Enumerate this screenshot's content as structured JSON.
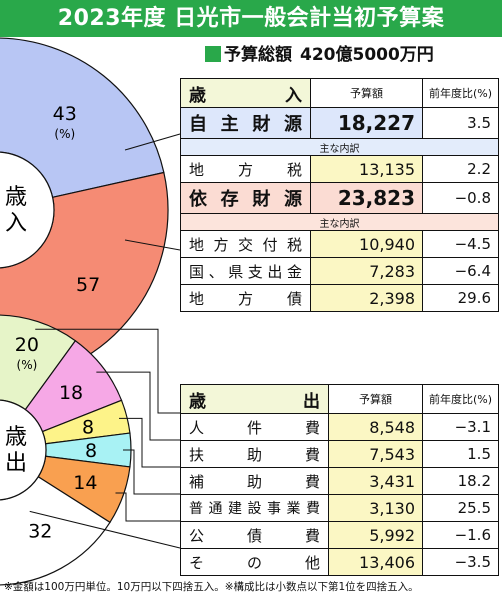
{
  "title": "2023年度 日光市一般会計当初予算案",
  "total": {
    "label": "予算総額",
    "amount": "420億5000万円"
  },
  "chart_data": [
    {
      "type": "pie",
      "title": "歳入",
      "categories": [
        "自主財源",
        "依存財源"
      ],
      "values": [
        43,
        57
      ],
      "labels": [
        "43",
        "57"
      ],
      "unit_label": "(%)",
      "colors": [
        "#b8c6f4",
        "#f58b74"
      ]
    },
    {
      "type": "pie",
      "title": "歳出",
      "categories": [
        "人件費",
        "扶助費",
        "補助費",
        "普通建設事業費",
        "公債費",
        "その他"
      ],
      "values": [
        20,
        18,
        8,
        8,
        14,
        32
      ],
      "labels": [
        "20",
        "18",
        "8",
        "8",
        "14",
        "32"
      ],
      "unit_label": "(%)",
      "colors": [
        "#e6f4c8",
        "#f6a8e6",
        "#fdf389",
        "#a8f2f4",
        "#f9a050",
        "#ffffff"
      ]
    },
    {
      "type": "table",
      "title": "歳入",
      "columns": [
        "歳　　入",
        "予算額",
        "前年度比(%)"
      ],
      "rows": [
        {
          "label": "自主財源",
          "amount": "18,227",
          "change": "3.5",
          "level": "major"
        },
        {
          "label": "主な内訳",
          "level": "note"
        },
        {
          "label": "地方税",
          "amount": "13,135",
          "change": "2.2",
          "level": "item"
        },
        {
          "label": "依存財源",
          "amount": "23,823",
          "change": "−0.8",
          "level": "major"
        },
        {
          "label": "主な内訳",
          "level": "note"
        },
        {
          "label": "地方交付税",
          "amount": "10,940",
          "change": "−4.5",
          "level": "item"
        },
        {
          "label": "国、県支出金",
          "amount": "7,283",
          "change": "−6.4",
          "level": "item"
        },
        {
          "label": "地方債",
          "amount": "2,398",
          "change": "29.6",
          "level": "item"
        }
      ]
    },
    {
      "type": "table",
      "title": "歳出",
      "columns": [
        "歳　　出",
        "予算額",
        "前年度比(%)"
      ],
      "rows": [
        {
          "label": "人件費",
          "amount": "8,548",
          "change": "−3.1"
        },
        {
          "label": "扶助費",
          "amount": "7,543",
          "change": "1.5"
        },
        {
          "label": "補助費",
          "amount": "3,431",
          "change": "18.2"
        },
        {
          "label": "普通建設事業費",
          "amount": "3,130",
          "change": "25.5"
        },
        {
          "label": "公債費",
          "amount": "5,992",
          "change": "−1.6"
        },
        {
          "label": "その他",
          "amount": "13,406",
          "change": "−3.5"
        }
      ]
    }
  ],
  "footnote": "※金額は100万円単位。10万円以下四捨五入。※構成比は小数点以下第1位を四捨五入。",
  "colors": {
    "header": "#29a84a",
    "line": "#111111"
  }
}
